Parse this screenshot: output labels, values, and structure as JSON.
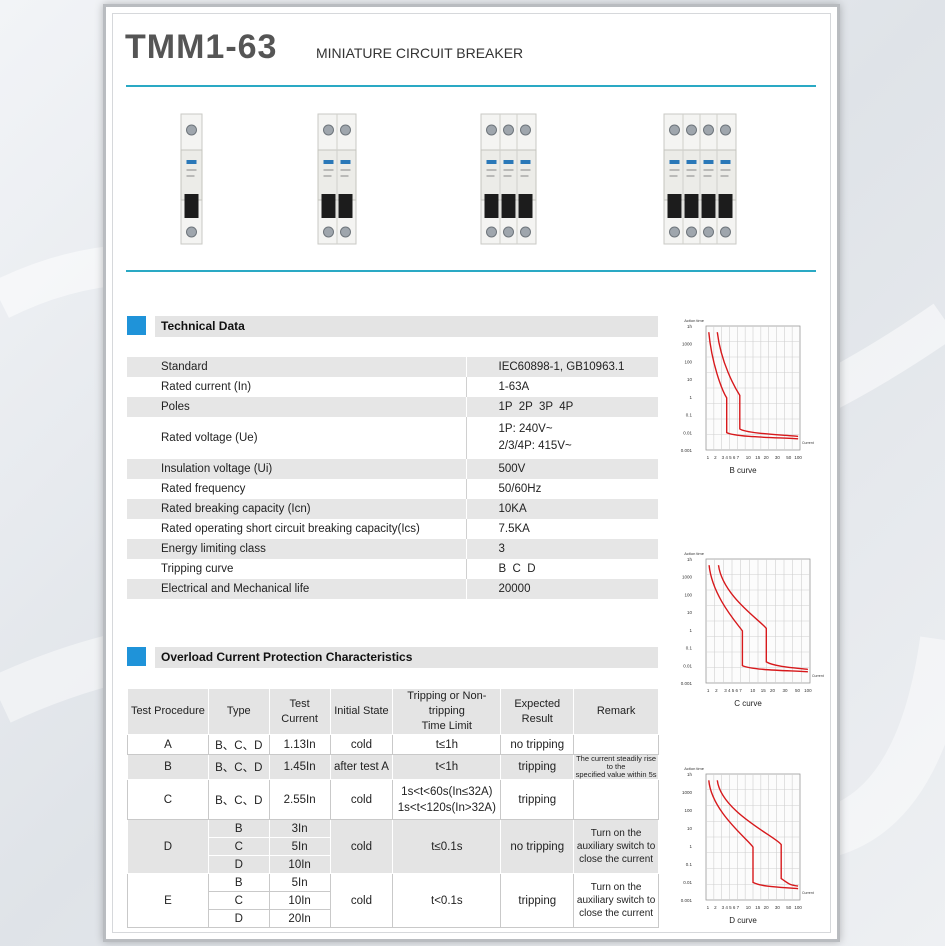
{
  "header": {
    "title": "TMM1-63",
    "subtitle": "MINIATURE CIRCUIT BREAKER"
  },
  "products": [
    {
      "poles": 1,
      "name": "1P breaker"
    },
    {
      "poles": 2,
      "name": "2P breaker"
    },
    {
      "poles": 3,
      "name": "3P breaker"
    },
    {
      "poles": 4,
      "name": "4P breaker"
    }
  ],
  "technical": {
    "heading": "Technical Data",
    "rows": [
      {
        "label": "Standard",
        "value": "IEC60898-1, GB10963.1"
      },
      {
        "label": "Rated current (In)",
        "value": "1-63A"
      },
      {
        "label": "Poles",
        "value": "1P  2P  3P  4P"
      },
      {
        "label": "Rated voltage (Ue)",
        "value": "1P: 240V~",
        "value2": "2/3/4P: 415V~"
      },
      {
        "label": "Insulation voltage (Ui)",
        "value": "500V"
      },
      {
        "label": "Rated frequency",
        "value": "50/60Hz"
      },
      {
        "label": "Rated breaking capacity (Icn)",
        "value": "10KA"
      },
      {
        "label": "Rated operating short circuit breaking capacity(Ics)",
        "value": "7.5KA"
      },
      {
        "label": "Energy limiting class",
        "value": "3"
      },
      {
        "label": "Tripping curve",
        "value": "B  C  D"
      },
      {
        "label": "Electrical and Mechanical life",
        "value": "20000"
      }
    ]
  },
  "overload": {
    "heading": "Overload Current Protection Characteristics",
    "headers": [
      "Test Procedure",
      "Type",
      "Test Current",
      "Initial State",
      "Tripping or Non-tripping",
      "Time Limit",
      "Expected Result",
      "Remark"
    ],
    "rowA": {
      "proc": "A",
      "type": "B、C、D",
      "current": "1.13In",
      "state": "cold",
      "time": "t≤1h",
      "result": "no tripping",
      "remark": ""
    },
    "rowB": {
      "proc": "B",
      "type": "B、C、D",
      "current": "1.45In",
      "state": "after test A",
      "time": "t<1h",
      "result": "tripping",
      "remark1": "The current steadily rise to the",
      "remark2": "specified value within 5s"
    },
    "rowC": {
      "proc": "C",
      "type": "B、C、D",
      "current": "2.55In",
      "state": "cold",
      "time1": "1s<t<60s(In≤32A)",
      "time2": "1s<t<120s(In>32A)",
      "result": "tripping",
      "remark": ""
    },
    "rowD": {
      "proc": "D",
      "types": [
        "B",
        "C",
        "D"
      ],
      "currents": [
        "3In",
        "5In",
        "10In"
      ],
      "state": "cold",
      "time": "t≤0.1s",
      "result": "no tripping",
      "remark1": "Turn on the",
      "remark2": "auxiliary switch to",
      "remark3": "close the current"
    },
    "rowE": {
      "proc": "E",
      "types": [
        "B",
        "C",
        "D"
      ],
      "currents": [
        "5In",
        "10In",
        "20In"
      ],
      "state": "cold",
      "time": "t<0.1s",
      "result": "tripping",
      "remark1": "Turn on the",
      "remark2": "auxiliary switch to",
      "remark3": "close the current"
    }
  },
  "curves": [
    {
      "caption": "B   curve",
      "ylabels": [
        "Action time",
        "1h",
        "1000",
        "100",
        "10",
        "1",
        "0.1",
        "0.01",
        "0.001"
      ],
      "xlabels": [
        "1",
        "2",
        "3 4 5 6 7",
        "10",
        "15",
        "20",
        "30",
        "50",
        "100"
      ],
      "xunit": "Current",
      "kind": "B"
    },
    {
      "caption": "C   curve",
      "ylabels": [
        "Action time",
        "1h",
        "1000",
        "100",
        "10",
        "1",
        "0.1",
        "0.01",
        "0.001"
      ],
      "xlabels": [
        "1",
        "2",
        "3 4 5 6 7",
        "10",
        "15",
        "20",
        "30",
        "50",
        "100"
      ],
      "xunit": "Current",
      "kind": "C"
    },
    {
      "caption": "D   curve",
      "ylabels": [
        "Action time",
        "1h",
        "1000",
        "100",
        "10",
        "1",
        "0.1",
        "0.01",
        "0.001"
      ],
      "xlabels": [
        "1",
        "2",
        "3 4 5 6 7",
        "10",
        "15",
        "20",
        "30",
        "50",
        "100"
      ],
      "xunit": "Current",
      "kind": "D"
    }
  ],
  "colors": {
    "accent": "#1f93d9",
    "rule": "#2aa9c4",
    "curve": "#d7191c"
  }
}
